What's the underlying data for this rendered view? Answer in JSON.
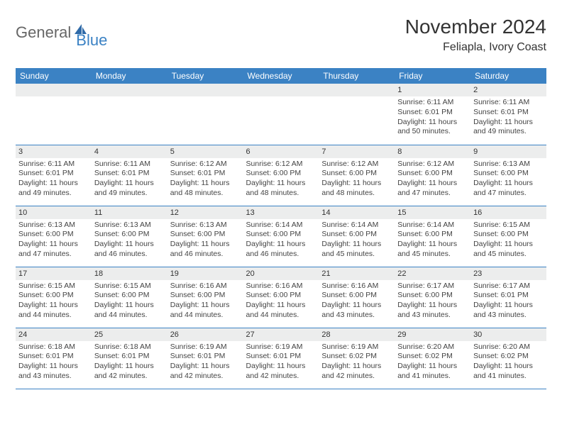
{
  "brand": {
    "text1": "General",
    "text2": "Blue"
  },
  "title": "November 2024",
  "location": "Feliapla, Ivory Coast",
  "colors": {
    "header_bg": "#3b82c4",
    "header_fg": "#ffffff",
    "daynum_bg": "#eceded",
    "border": "#3b82c4",
    "text": "#444444",
    "title": "#333333"
  },
  "day_headers": [
    "Sunday",
    "Monday",
    "Tuesday",
    "Wednesday",
    "Thursday",
    "Friday",
    "Saturday"
  ],
  "weeks": [
    [
      null,
      null,
      null,
      null,
      null,
      {
        "n": "1",
        "sr": "Sunrise: 6:11 AM",
        "ss": "Sunset: 6:01 PM",
        "d1": "Daylight: 11 hours",
        "d2": "and 50 minutes."
      },
      {
        "n": "2",
        "sr": "Sunrise: 6:11 AM",
        "ss": "Sunset: 6:01 PM",
        "d1": "Daylight: 11 hours",
        "d2": "and 49 minutes."
      }
    ],
    [
      {
        "n": "3",
        "sr": "Sunrise: 6:11 AM",
        "ss": "Sunset: 6:01 PM",
        "d1": "Daylight: 11 hours",
        "d2": "and 49 minutes."
      },
      {
        "n": "4",
        "sr": "Sunrise: 6:11 AM",
        "ss": "Sunset: 6:01 PM",
        "d1": "Daylight: 11 hours",
        "d2": "and 49 minutes."
      },
      {
        "n": "5",
        "sr": "Sunrise: 6:12 AM",
        "ss": "Sunset: 6:01 PM",
        "d1": "Daylight: 11 hours",
        "d2": "and 48 minutes."
      },
      {
        "n": "6",
        "sr": "Sunrise: 6:12 AM",
        "ss": "Sunset: 6:00 PM",
        "d1": "Daylight: 11 hours",
        "d2": "and 48 minutes."
      },
      {
        "n": "7",
        "sr": "Sunrise: 6:12 AM",
        "ss": "Sunset: 6:00 PM",
        "d1": "Daylight: 11 hours",
        "d2": "and 48 minutes."
      },
      {
        "n": "8",
        "sr": "Sunrise: 6:12 AM",
        "ss": "Sunset: 6:00 PM",
        "d1": "Daylight: 11 hours",
        "d2": "and 47 minutes."
      },
      {
        "n": "9",
        "sr": "Sunrise: 6:13 AM",
        "ss": "Sunset: 6:00 PM",
        "d1": "Daylight: 11 hours",
        "d2": "and 47 minutes."
      }
    ],
    [
      {
        "n": "10",
        "sr": "Sunrise: 6:13 AM",
        "ss": "Sunset: 6:00 PM",
        "d1": "Daylight: 11 hours",
        "d2": "and 47 minutes."
      },
      {
        "n": "11",
        "sr": "Sunrise: 6:13 AM",
        "ss": "Sunset: 6:00 PM",
        "d1": "Daylight: 11 hours",
        "d2": "and 46 minutes."
      },
      {
        "n": "12",
        "sr": "Sunrise: 6:13 AM",
        "ss": "Sunset: 6:00 PM",
        "d1": "Daylight: 11 hours",
        "d2": "and 46 minutes."
      },
      {
        "n": "13",
        "sr": "Sunrise: 6:14 AM",
        "ss": "Sunset: 6:00 PM",
        "d1": "Daylight: 11 hours",
        "d2": "and 46 minutes."
      },
      {
        "n": "14",
        "sr": "Sunrise: 6:14 AM",
        "ss": "Sunset: 6:00 PM",
        "d1": "Daylight: 11 hours",
        "d2": "and 45 minutes."
      },
      {
        "n": "15",
        "sr": "Sunrise: 6:14 AM",
        "ss": "Sunset: 6:00 PM",
        "d1": "Daylight: 11 hours",
        "d2": "and 45 minutes."
      },
      {
        "n": "16",
        "sr": "Sunrise: 6:15 AM",
        "ss": "Sunset: 6:00 PM",
        "d1": "Daylight: 11 hours",
        "d2": "and 45 minutes."
      }
    ],
    [
      {
        "n": "17",
        "sr": "Sunrise: 6:15 AM",
        "ss": "Sunset: 6:00 PM",
        "d1": "Daylight: 11 hours",
        "d2": "and 44 minutes."
      },
      {
        "n": "18",
        "sr": "Sunrise: 6:15 AM",
        "ss": "Sunset: 6:00 PM",
        "d1": "Daylight: 11 hours",
        "d2": "and 44 minutes."
      },
      {
        "n": "19",
        "sr": "Sunrise: 6:16 AM",
        "ss": "Sunset: 6:00 PM",
        "d1": "Daylight: 11 hours",
        "d2": "and 44 minutes."
      },
      {
        "n": "20",
        "sr": "Sunrise: 6:16 AM",
        "ss": "Sunset: 6:00 PM",
        "d1": "Daylight: 11 hours",
        "d2": "and 44 minutes."
      },
      {
        "n": "21",
        "sr": "Sunrise: 6:16 AM",
        "ss": "Sunset: 6:00 PM",
        "d1": "Daylight: 11 hours",
        "d2": "and 43 minutes."
      },
      {
        "n": "22",
        "sr": "Sunrise: 6:17 AM",
        "ss": "Sunset: 6:00 PM",
        "d1": "Daylight: 11 hours",
        "d2": "and 43 minutes."
      },
      {
        "n": "23",
        "sr": "Sunrise: 6:17 AM",
        "ss": "Sunset: 6:01 PM",
        "d1": "Daylight: 11 hours",
        "d2": "and 43 minutes."
      }
    ],
    [
      {
        "n": "24",
        "sr": "Sunrise: 6:18 AM",
        "ss": "Sunset: 6:01 PM",
        "d1": "Daylight: 11 hours",
        "d2": "and 43 minutes."
      },
      {
        "n": "25",
        "sr": "Sunrise: 6:18 AM",
        "ss": "Sunset: 6:01 PM",
        "d1": "Daylight: 11 hours",
        "d2": "and 42 minutes."
      },
      {
        "n": "26",
        "sr": "Sunrise: 6:19 AM",
        "ss": "Sunset: 6:01 PM",
        "d1": "Daylight: 11 hours",
        "d2": "and 42 minutes."
      },
      {
        "n": "27",
        "sr": "Sunrise: 6:19 AM",
        "ss": "Sunset: 6:01 PM",
        "d1": "Daylight: 11 hours",
        "d2": "and 42 minutes."
      },
      {
        "n": "28",
        "sr": "Sunrise: 6:19 AM",
        "ss": "Sunset: 6:02 PM",
        "d1": "Daylight: 11 hours",
        "d2": "and 42 minutes."
      },
      {
        "n": "29",
        "sr": "Sunrise: 6:20 AM",
        "ss": "Sunset: 6:02 PM",
        "d1": "Daylight: 11 hours",
        "d2": "and 41 minutes."
      },
      {
        "n": "30",
        "sr": "Sunrise: 6:20 AM",
        "ss": "Sunset: 6:02 PM",
        "d1": "Daylight: 11 hours",
        "d2": "and 41 minutes."
      }
    ]
  ]
}
